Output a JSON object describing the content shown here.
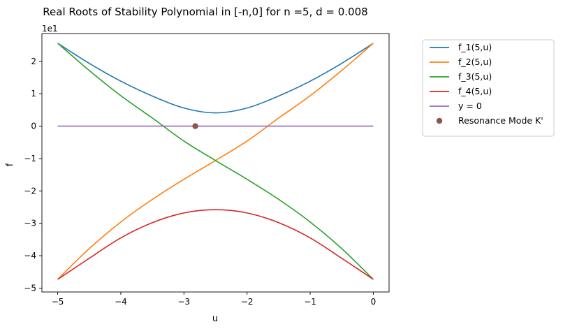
{
  "chart_data": {
    "type": "line",
    "title": "Real Roots of Stability Polynomial in [-n,0] for n =5, d = 0.008",
    "xlabel": "u",
    "ylabel": "f",
    "y_offset_label": "1e1",
    "xlim": [
      -5.25,
      0.25
    ],
    "ylim": [
      -5.12,
      2.86
    ],
    "x_ticks": [
      -5,
      -4,
      -3,
      -2,
      -1,
      0
    ],
    "x_tick_labels": [
      "−5",
      "−4",
      "−3",
      "−2",
      "−1",
      "0"
    ],
    "y_ticks": [
      -5,
      -4,
      -3,
      -2,
      -1,
      0,
      1,
      2
    ],
    "y_tick_labels": [
      "−5",
      "−4",
      "−3",
      "−2",
      "−1",
      "0",
      "1",
      "2"
    ],
    "grid": false,
    "legend_position": "outside-top-right",
    "x": [
      -5.0,
      -4.5,
      -4.0,
      -3.5,
      -3.0,
      -2.5,
      -2.0,
      -1.5,
      -1.0,
      -0.5,
      0.0
    ],
    "series": [
      {
        "name": "f_1(5,u)",
        "color": "#1f77b4",
        "values": [
          2.56,
          1.94,
          1.39,
          0.93,
          0.56,
          0.41,
          0.56,
          0.93,
          1.39,
          1.94,
          2.56
        ]
      },
      {
        "name": "f_2(5,u)",
        "color": "#ff7f0e",
        "values": [
          -4.73,
          -3.78,
          -2.96,
          -2.26,
          -1.64,
          -1.06,
          -0.46,
          0.25,
          0.94,
          1.72,
          2.56
        ]
      },
      {
        "name": "f_3(5,u)",
        "color": "#2ca02c",
        "values": [
          2.56,
          1.72,
          0.94,
          0.25,
          -0.46,
          -1.06,
          -1.64,
          -2.26,
          -2.96,
          -3.78,
          -4.73
        ]
      },
      {
        "name": "f_4(5,u)",
        "color": "#d62728",
        "values": [
          -4.73,
          -4.08,
          -3.45,
          -2.98,
          -2.68,
          -2.58,
          -2.68,
          -2.98,
          -3.45,
          -4.08,
          -4.73
        ]
      },
      {
        "name": "y = 0",
        "color": "#9467bd",
        "values": [
          0,
          0,
          0,
          0,
          0,
          0,
          0,
          0,
          0,
          0,
          0
        ]
      }
    ],
    "points": [
      {
        "name": "Resonance Mode K'",
        "color": "#8c564b",
        "x": -2.82,
        "y": 0
      }
    ]
  }
}
